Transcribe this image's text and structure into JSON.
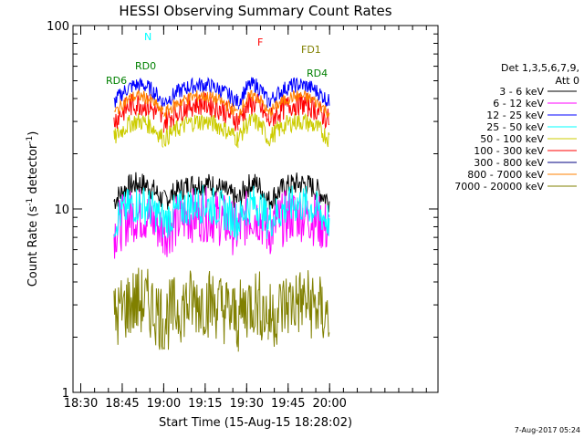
{
  "chart_data": {
    "type": "line",
    "title": "HESSI Observing Summary Count Rates",
    "xlabel": "Start Time (15-Aug-15 18:28:02)",
    "ylabel": "Count Rate (s",
    "ylabel_sup1": "-1",
    "ylabel_mid": " detector",
    "ylabel_sup2": "-1",
    "ylabel_end": ")",
    "yscale": "log",
    "ylim": [
      1,
      100
    ],
    "xlim_min": [
      18.4533,
      20.6533
    ],
    "x_tick_labels": [
      "18:30",
      "18:45",
      "19:00",
      "19:15",
      "19:30",
      "19:45",
      "20:00"
    ],
    "x_ticks_min": [
      18.5,
      18.75,
      19.0,
      19.25,
      19.5,
      19.75,
      20.0
    ],
    "y_tick_labels": [
      "1",
      "10",
      "100"
    ],
    "y_ticks": [
      1,
      10,
      100
    ],
    "legend": {
      "header": "Det 1,3,5,6,7,9,",
      "header2": "Att 0",
      "entries": [
        {
          "label": "3 - 6 keV",
          "color": "#000000"
        },
        {
          "label": "6 - 12 keV",
          "color": "#ff00ff"
        },
        {
          "label": "12 - 25 keV",
          "color": "#0000ff"
        },
        {
          "label": "25 - 50 keV",
          "color": "#00ffff"
        },
        {
          "label": "50 - 100 keV",
          "color": "#cccc00"
        },
        {
          "label": "100 - 300 keV",
          "color": "#ff0000"
        },
        {
          "label": "300 - 800 keV",
          "color": "#000080"
        },
        {
          "label": "800 - 7000 keV",
          "color": "#ff8000"
        },
        {
          "label": "7000 - 20000 keV",
          "color": "#808000"
        }
      ]
    },
    "annotations": [
      {
        "text": "N",
        "color": "#00ffff"
      },
      {
        "text": "F",
        "color": "#ff0000"
      },
      {
        "text": "FD1",
        "color": "#808000"
      },
      {
        "text": "RD0",
        "color": "#008000"
      },
      {
        "text": "RD6",
        "color": "#008000"
      },
      {
        "text": "RD4",
        "color": "#008000"
      }
    ],
    "series": [
      {
        "name": "3 - 6 keV",
        "color": "#000000",
        "base": 11,
        "noise": 0.15,
        "segments": [
          [
            18.7,
            19.0
          ],
          [
            19.0,
            19.45
          ],
          [
            19.45,
            19.63
          ],
          [
            19.63,
            20.0
          ]
        ]
      },
      {
        "name": "6 - 12 keV",
        "color": "#ff00ff",
        "base": 7.5,
        "noise": 0.35,
        "segments": [
          [
            18.7,
            19.0
          ],
          [
            19.0,
            19.45
          ],
          [
            19.45,
            19.63
          ],
          [
            19.63,
            20.0
          ]
        ]
      },
      {
        "name": "12 - 25 keV",
        "color": "#0000ff",
        "base": 38,
        "noise": 0.1,
        "segments": [
          [
            18.7,
            19.0
          ],
          [
            19.0,
            19.45
          ],
          [
            19.45,
            19.63
          ],
          [
            19.63,
            20.0
          ]
        ]
      },
      {
        "name": "25 - 50 keV",
        "color": "#00ffff",
        "base": 8.5,
        "noise": 0.25,
        "segments": [
          [
            18.7,
            19.0
          ],
          [
            19.0,
            19.45
          ],
          [
            19.45,
            19.63
          ],
          [
            19.63,
            20.0
          ]
        ]
      },
      {
        "name": "50 - 100 keV",
        "color": "#cccc00",
        "base": 24,
        "noise": 0.12,
        "segments": [
          [
            18.7,
            19.0
          ],
          [
            19.0,
            19.45
          ],
          [
            19.45,
            19.63
          ],
          [
            19.63,
            20.0
          ]
        ]
      },
      {
        "name": "100 - 300 keV",
        "color": "#ff0000",
        "base": 30,
        "noise": 0.15,
        "segments": [
          [
            18.7,
            19.0
          ],
          [
            19.0,
            19.45
          ],
          [
            19.45,
            19.63
          ],
          [
            19.63,
            20.0
          ]
        ]
      },
      {
        "name": "300 - 800 keV",
        "color": "#000080",
        "base": 1,
        "noise": 0,
        "segments": []
      },
      {
        "name": "800 - 7000 keV",
        "color": "#ff8000",
        "base": 33,
        "noise": 0.08,
        "segments": [
          [
            18.7,
            19.0
          ],
          [
            19.0,
            19.45
          ],
          [
            19.45,
            19.63
          ],
          [
            19.63,
            20.0
          ]
        ]
      },
      {
        "name": "7000 - 20000 keV",
        "color": "#808000",
        "base": 2.5,
        "noise": 0.45,
        "segments": [
          [
            18.7,
            19.0
          ],
          [
            19.0,
            19.45
          ],
          [
            19.45,
            19.63
          ],
          [
            19.63,
            20.0
          ]
        ]
      }
    ]
  },
  "footer": {
    "timestamp": "7-Aug-2017 05:24"
  }
}
